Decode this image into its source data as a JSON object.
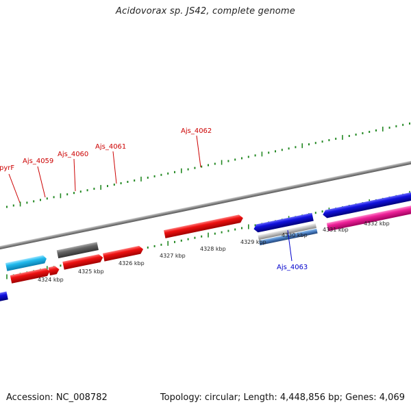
{
  "header": {
    "title": "Acidovorax sp. JS42, complete genome"
  },
  "footer": {
    "accession": "Accession: NC_008782",
    "summary": "Topology: circular; Length: 4,448,856 bp; Genes: 4,069"
  },
  "map": {
    "scale_labels": [
      "4324 kbp",
      "4325 kbp",
      "4326 kbp",
      "4327 kbp",
      "4328 kbp",
      "4329 kbp",
      "4330 kbp",
      "4331 kbp",
      "4332 kbp"
    ],
    "gene_labels": [
      {
        "name": "pyrF",
        "color": "#cc0000"
      },
      {
        "name": "Ajs_4059",
        "color": "#cc0000"
      },
      {
        "name": "Ajs_4060",
        "color": "#cc0000"
      },
      {
        "name": "Ajs_4061",
        "color": "#cc0000"
      },
      {
        "name": "Ajs_4062",
        "color": "#cc0000"
      },
      {
        "name": "Ajs_4063",
        "color": "#0000cc"
      }
    ],
    "colors": {
      "forward_cds": "#ee1111",
      "reverse_cds": "#1111dd",
      "rna": "#22bbee",
      "pseudo": "#666666",
      "misc": "#ee2299",
      "backbone": "#888888",
      "ticks": "#228822"
    }
  }
}
